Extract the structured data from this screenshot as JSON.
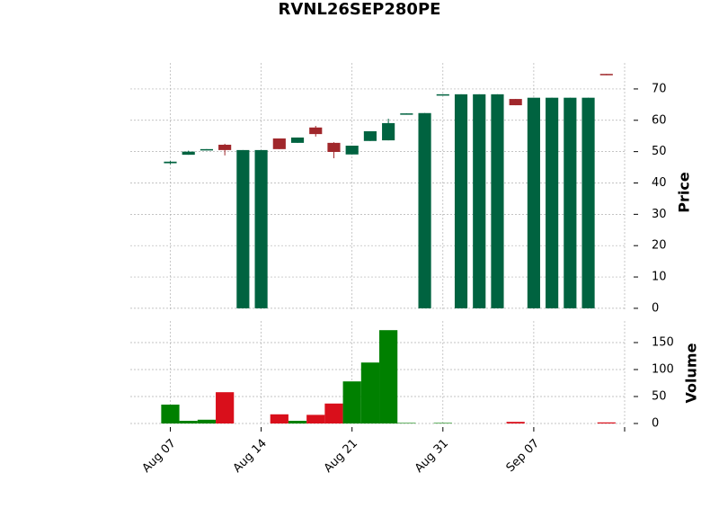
{
  "chart_data": {
    "type": "candlestick",
    "title": "RVNL26SEP280PE",
    "xticks": [
      0,
      5,
      10,
      15,
      20,
      25
    ],
    "xtick_labels": [
      "Aug 07",
      "Aug 14",
      "Aug 21",
      "Aug 31",
      "Sep 07",
      null
    ],
    "xlim": [
      -2.2,
      25
    ],
    "open": [
      46.3,
      49.0,
      50.4,
      52.2,
      0,
      0,
      54.2,
      52.8,
      57.7,
      52.8,
      49.1,
      53.4,
      53.6,
      61.8,
      0,
      68.1,
      0,
      0,
      0,
      66.8,
      0,
      0,
      0,
      0,
      74.8
    ],
    "high": [
      47.0,
      50.3,
      50.8,
      52.5,
      50.5,
      50.5,
      54.2,
      54.5,
      58.2,
      53.0,
      51.9,
      56.5,
      60.5,
      62.2,
      62.3,
      68.3,
      68.3,
      68.3,
      68.3,
      66.8,
      67.2,
      67.2,
      67.2,
      67.2,
      74.8
    ],
    "low": [
      46.0,
      49.0,
      50.4,
      48.8,
      0,
      0,
      50.8,
      52.8,
      54.8,
      47.9,
      49.1,
      53.4,
      53.6,
      61.8,
      0,
      68.1,
      0,
      0,
      0,
      64.8,
      0,
      0,
      0,
      0,
      74.4
    ],
    "close": [
      46.8,
      50.0,
      50.8,
      50.5,
      50.5,
      50.5,
      50.8,
      54.5,
      55.6,
      49.9,
      51.9,
      56.5,
      59.1,
      62.2,
      62.3,
      68.3,
      68.3,
      68.3,
      68.3,
      64.8,
      67.2,
      67.2,
      67.2,
      67.2,
      74.4
    ],
    "volume": [
      35,
      5,
      7,
      58,
      0,
      0,
      17,
      5,
      16,
      37,
      78,
      113,
      173,
      1,
      0,
      1,
      0,
      0,
      0,
      3,
      0,
      0,
      0,
      0,
      2
    ],
    "up_color": "#006340",
    "down_color": "#a0272b",
    "volume_up_color": "#008000",
    "volume_down_color": "#d90f1b",
    "ylabel": "Price",
    "ylim": [
      -0.6,
      78.3
    ],
    "yticks": [
      0,
      10,
      20,
      30,
      40,
      50,
      60,
      70
    ],
    "volume_label": "Volume",
    "volume_ylim": [
      0,
      190
    ],
    "volume_yticks": [
      0,
      50,
      100,
      150
    ],
    "grid": true
  }
}
